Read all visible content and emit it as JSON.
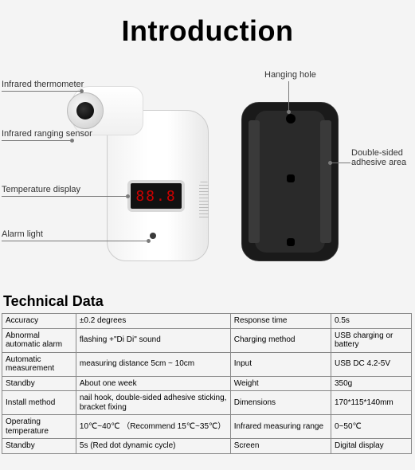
{
  "title": "Introduction",
  "labels": {
    "infrared_thermometer": "Infrared thermometer",
    "infrared_ranging_sensor": "Infrared ranging sensor",
    "temperature_display": "Temperature display",
    "alarm_light": "Alarm light",
    "hanging_hole": "Hanging hole",
    "double_sided_adhesive_area": "Double-sided\nadhesive area"
  },
  "screen_value": "88.8",
  "colors": {
    "background": "#f4f4f4",
    "screen_bg": "#111111",
    "screen_text": "#cc0000",
    "back_body": "#1a1a1a",
    "table_border": "#888888"
  },
  "tech_title": "Technical Data",
  "tech_rows": [
    {
      "c1": "Accuracy",
      "c2": "±0.2 degrees",
      "c3": "Response time",
      "c4": "0.5s"
    },
    {
      "c1": "Abnormal automatic alarm",
      "c2": "flashing +\"Di Di\" sound",
      "c3": "Charging method",
      "c4": "USB charging or battery"
    },
    {
      "c1": "Automatic measurement",
      "c2": "measuring distance 5cm ~ 10cm",
      "c3": "Input",
      "c4": "USB DC 4.2-5V"
    },
    {
      "c1": "Standby",
      "c2": "About one week",
      "c3": "Weight",
      "c4": "350g"
    },
    {
      "c1": "Install method",
      "c2": "nail hook, double-sided adhesive sticking, bracket fixing",
      "c3": "Dimensions",
      "c4": "170*115*140mm"
    },
    {
      "c1": "Operating temperature",
      "c2": "10℃~40℃ （Recommend 15℃~35℃）",
      "c3": "Infrared measuring range",
      "c4": "0~50℃"
    },
    {
      "c1": "Standby",
      "c2": "5s (Red dot dynamic cycle)",
      "c3": "Screen",
      "c4": "Digital display"
    }
  ]
}
